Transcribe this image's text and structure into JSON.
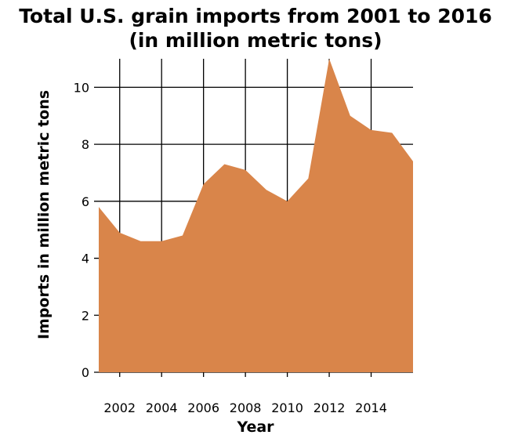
{
  "chart_data": {
    "type": "area",
    "title": "Total U.S. grain imports from 2001 to 2016",
    "subtitle": "(in million metric tons)",
    "xlabel": "Year",
    "ylabel": "Imports in million metric tons",
    "x": [
      2001,
      2002,
      2003,
      2004,
      2005,
      2006,
      2007,
      2008,
      2009,
      2010,
      2011,
      2012,
      2013,
      2014,
      2015,
      2016
    ],
    "values": [
      5.8,
      4.9,
      4.6,
      4.6,
      4.8,
      6.6,
      7.3,
      7.1,
      6.4,
      6.0,
      6.8,
      11.0,
      9.0,
      8.5,
      8.4,
      7.4
    ],
    "xlim": [
      2001,
      2016
    ],
    "ylim": [
      0,
      11
    ],
    "xticks": [
      2002,
      2004,
      2006,
      2008,
      2010,
      2012,
      2014
    ],
    "yticks": [
      0,
      2,
      4,
      6,
      8,
      10
    ],
    "grid": true,
    "fill_color": "#d9854a",
    "grid_color": "#000000"
  }
}
